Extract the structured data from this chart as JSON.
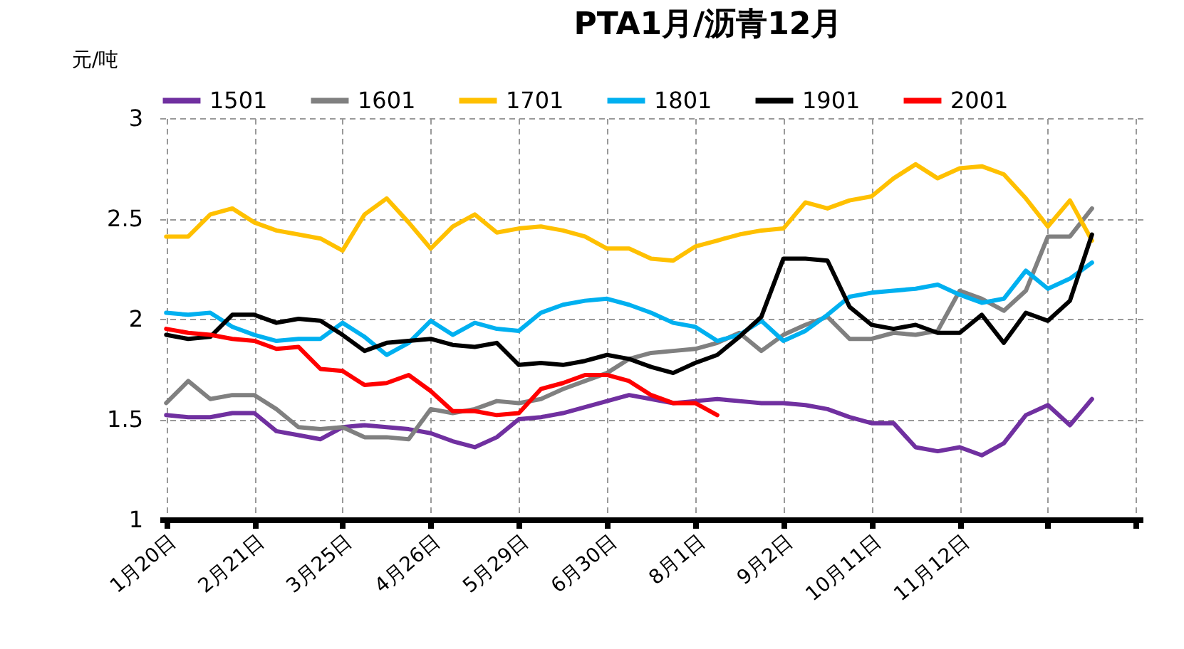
{
  "chart_data": {
    "type": "line",
    "title": "PTA1月/沥青12月",
    "ylabel": "元/吨",
    "categories": [
      "1月20日",
      null,
      null,
      null,
      "2月21日",
      null,
      null,
      null,
      "3月25日",
      null,
      null,
      null,
      "4月26日",
      null,
      null,
      null,
      "5月29日",
      null,
      null,
      null,
      "6月30日",
      null,
      null,
      null,
      "8月1日",
      null,
      null,
      null,
      "9月2日",
      null,
      null,
      null,
      "10月11日",
      null,
      null,
      null,
      "11月12日",
      null,
      null,
      null,
      null,
      null,
      null,
      null,
      null
    ],
    "ylim": [
      1,
      3
    ],
    "yticks": [
      1,
      1.5,
      2,
      2.5,
      3
    ],
    "grid": true,
    "legend": "top",
    "series": [
      {
        "name": "1501",
        "color": "#7030a0",
        "values": [
          1.52,
          1.51,
          1.51,
          1.53,
          1.53,
          1.44,
          1.42,
          1.4,
          1.46,
          1.47,
          1.46,
          1.45,
          1.43,
          1.39,
          1.36,
          1.41,
          1.5,
          1.51,
          1.53,
          1.56,
          1.59,
          1.62,
          1.6,
          1.58,
          1.59,
          1.6,
          1.59,
          1.58,
          1.58,
          1.57,
          1.55,
          1.51,
          1.48,
          1.48,
          1.36,
          1.34,
          1.36,
          1.32,
          1.38,
          1.52,
          1.57,
          1.47,
          1.6,
          null,
          null
        ]
      },
      {
        "name": "1601",
        "color": "#808080",
        "values": [
          1.58,
          1.69,
          1.6,
          1.62,
          1.62,
          1.55,
          1.46,
          1.45,
          1.46,
          1.41,
          1.41,
          1.4,
          1.55,
          1.53,
          1.55,
          1.59,
          1.58,
          1.6,
          1.65,
          1.69,
          1.73,
          1.8,
          1.83,
          1.84,
          1.85,
          1.88,
          1.93,
          1.84,
          1.92,
          1.97,
          2.01,
          1.9,
          1.9,
          1.93,
          1.92,
          1.94,
          2.14,
          2.1,
          2.04,
          2.14,
          2.41,
          2.41,
          2.55,
          null,
          null
        ]
      },
      {
        "name": "1701",
        "color": "#ffc000",
        "values": [
          2.41,
          2.41,
          2.52,
          2.55,
          2.48,
          2.44,
          2.42,
          2.4,
          2.34,
          2.52,
          2.6,
          2.48,
          2.35,
          2.46,
          2.52,
          2.43,
          2.45,
          2.46,
          2.44,
          2.41,
          2.35,
          2.35,
          2.3,
          2.29,
          2.36,
          2.39,
          2.42,
          2.44,
          2.45,
          2.58,
          2.55,
          2.59,
          2.61,
          2.7,
          2.77,
          2.7,
          2.75,
          2.76,
          2.72,
          2.6,
          2.46,
          2.59,
          2.39,
          null,
          null
        ]
      },
      {
        "name": "1801",
        "color": "#00b0f0",
        "values": [
          2.03,
          2.02,
          2.03,
          1.96,
          1.92,
          1.89,
          1.9,
          1.9,
          1.98,
          1.91,
          1.82,
          1.88,
          1.99,
          1.92,
          1.98,
          1.95,
          1.94,
          2.03,
          2.07,
          2.09,
          2.1,
          2.07,
          2.03,
          1.98,
          1.96,
          1.89,
          1.92,
          1.99,
          1.89,
          1.94,
          2.02,
          2.11,
          2.13,
          2.14,
          2.15,
          2.17,
          2.12,
          2.08,
          2.1,
          2.24,
          2.15,
          2.2,
          2.28,
          null,
          null
        ]
      },
      {
        "name": "1901",
        "color": "#000000",
        "values": [
          1.92,
          1.9,
          1.91,
          2.02,
          2.02,
          1.98,
          2.0,
          1.99,
          1.92,
          1.84,
          1.88,
          1.89,
          1.9,
          1.87,
          1.86,
          1.88,
          1.77,
          1.78,
          1.77,
          1.79,
          1.82,
          1.8,
          1.76,
          1.73,
          1.78,
          1.82,
          1.91,
          2.01,
          2.3,
          2.3,
          2.29,
          2.06,
          1.97,
          1.95,
          1.97,
          1.93,
          1.93,
          2.02,
          1.88,
          2.03,
          1.99,
          2.09,
          2.42,
          null,
          null
        ]
      },
      {
        "name": "2001",
        "color": "#ff0000",
        "values": [
          1.95,
          1.93,
          1.92,
          1.9,
          1.89,
          1.85,
          1.86,
          1.75,
          1.74,
          1.67,
          1.68,
          1.72,
          1.64,
          1.54,
          1.54,
          1.52,
          1.53,
          1.65,
          1.68,
          1.72,
          1.72,
          1.69,
          1.62,
          1.58,
          1.58,
          1.52,
          null,
          null,
          null,
          null,
          null,
          null,
          null,
          null,
          null,
          null,
          null,
          null,
          null,
          null,
          null,
          null,
          null,
          null,
          null
        ]
      }
    ]
  }
}
